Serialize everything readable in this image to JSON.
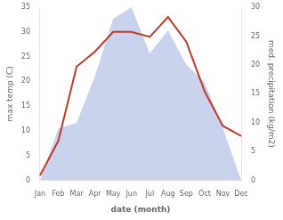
{
  "chart_data": {
    "type": "line",
    "xlabel": "date (month)",
    "ylabel": "max temp (C)",
    "y2label": "med. precipitation (kg/m2)",
    "categories": [
      "Jan",
      "Feb",
      "Mar",
      "Apr",
      "May",
      "Jun",
      "Jul",
      "Aug",
      "Sep",
      "Oct",
      "Nov",
      "Dec"
    ],
    "series": [
      {
        "type": "area",
        "axis": "y2",
        "color": "#b8c4e8",
        "values": [
          0,
          9,
          10,
          18,
          28,
          30,
          22,
          26,
          20,
          17,
          9,
          0
        ]
      },
      {
        "type": "line",
        "axis": "y",
        "color": "#c0392b",
        "values": [
          1,
          8,
          23,
          26,
          30,
          30,
          29,
          33,
          28,
          18,
          11,
          9
        ]
      }
    ],
    "ylim": [
      0,
      35
    ],
    "yticks": [
      0,
      5,
      10,
      15,
      20,
      25,
      30,
      35
    ],
    "y2lim": [
      0,
      30
    ],
    "y2ticks": [
      0,
      5,
      10,
      15,
      20,
      25,
      30
    ],
    "grid": false
  }
}
